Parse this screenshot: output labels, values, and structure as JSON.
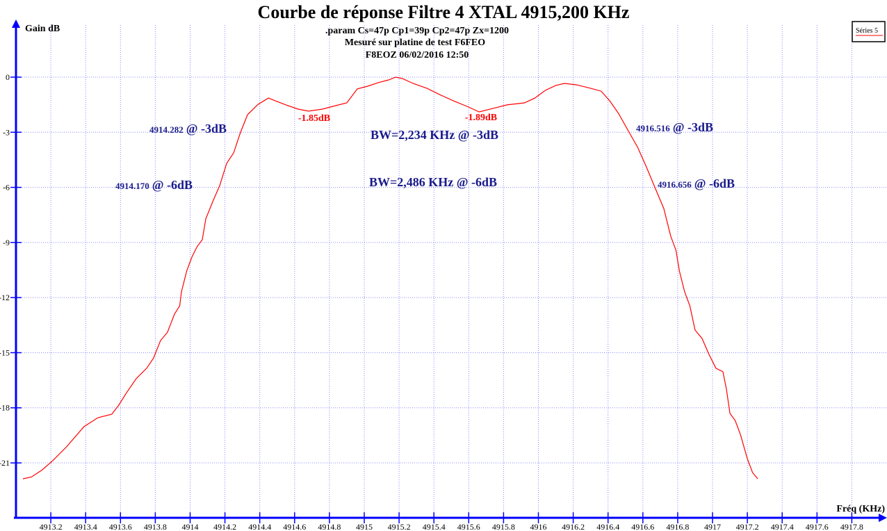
{
  "chart_data": {
    "type": "line",
    "title": "Courbe de réponse Filtre 4 XTAL 4915,200 KHz",
    "subtitles": [
      ".param Cs=47p Cp1=39p Cp2=47p Zx=1200",
      "Mesuré sur platine de test F6FEO",
      "F8EOZ 06/02/2016 12:50"
    ],
    "xlabel": "Fréq (KHz)",
    "ylabel": "Gain dB",
    "xlim": [
      4913.0,
      4918.0
    ],
    "ylim": [
      -24,
      3
    ],
    "grid": true,
    "legend_position": "top-right",
    "x_ticks": [
      "4913.2",
      "4913.4",
      "4913.6",
      "4913.8",
      "4914",
      "4914.2",
      "4914.4",
      "4914.6",
      "4914.8",
      "4915",
      "4915.2",
      "4915.4",
      "4915.6",
      "4915.8",
      "4916",
      "4916.2",
      "4916.4",
      "4916.6",
      "4916.8",
      "4917",
      "4917.2",
      "4917.4",
      "4917.6",
      "4917.8"
    ],
    "y_ticks": [
      "0",
      "-3",
      "-6",
      "-9",
      "-12",
      "-15",
      "-18",
      "-21"
    ],
    "series": [
      {
        "name": "Séries 5",
        "color": "#ff0000",
        "x": [
          4913.04,
          4913.09,
          4913.15,
          4913.21,
          4913.29,
          4913.39,
          4913.47,
          4913.55,
          4913.59,
          4913.63,
          4913.69,
          4913.75,
          4913.79,
          4913.83,
          4913.87,
          4913.91,
          4913.94,
          4913.95,
          4913.98,
          4914.01,
          4914.04,
          4914.07,
          4914.09,
          4914.13,
          4914.17,
          4914.21,
          4914.25,
          4914.29,
          4914.33,
          4914.39,
          4914.45,
          4914.49,
          4914.55,
          4914.62,
          4914.68,
          4914.76,
          4914.82,
          4914.9,
          4914.96,
          4915.02,
          4915.08,
          4915.14,
          4915.18,
          4915.22,
          4915.28,
          4915.36,
          4915.44,
          4915.52,
          4915.59,
          4915.66,
          4915.74,
          4915.82,
          4915.92,
          4915.98,
          4916.04,
          4916.1,
          4916.15,
          4916.22,
          4916.3,
          4916.36,
          4916.41,
          4916.46,
          4916.52,
          4916.57,
          4916.62,
          4916.67,
          4916.72,
          4916.76,
          4916.79,
          4916.81,
          4916.84,
          4916.87,
          4916.9,
          4916.94,
          4916.98,
          4917.02,
          4917.06,
          4917.08,
          4917.1,
          4917.13,
          4917.16,
          4917.2,
          4917.23,
          4917.26
        ],
        "y": [
          -21.87,
          -21.76,
          -21.38,
          -20.89,
          -20.13,
          -19.03,
          -18.54,
          -18.35,
          -17.86,
          -17.25,
          -16.42,
          -15.85,
          -15.29,
          -14.34,
          -13.89,
          -12.9,
          -12.45,
          -11.69,
          -10.56,
          -9.8,
          -9.23,
          -8.85,
          -7.72,
          -6.77,
          -5.9,
          -4.69,
          -4.12,
          -2.99,
          -2.04,
          -1.48,
          -1.14,
          -1.29,
          -1.51,
          -1.74,
          -1.85,
          -1.74,
          -1.59,
          -1.4,
          -0.64,
          -0.49,
          -0.3,
          -0.15,
          0.0,
          -0.08,
          -0.34,
          -0.61,
          -0.98,
          -1.32,
          -1.59,
          -1.89,
          -1.7,
          -1.51,
          -1.4,
          -1.14,
          -0.72,
          -0.45,
          -0.34,
          -0.42,
          -0.61,
          -0.76,
          -1.29,
          -1.97,
          -2.99,
          -3.82,
          -4.88,
          -6.02,
          -7.15,
          -8.66,
          -9.42,
          -10.56,
          -11.69,
          -12.45,
          -13.77,
          -14.23,
          -15.1,
          -15.85,
          -16.04,
          -16.99,
          -18.31,
          -18.69,
          -19.45,
          -20.77,
          -21.53,
          -21.87
        ]
      }
    ],
    "annotations": {
      "left_3db_freq": "4914.282",
      "left_3db_suffix": "@ -3dB",
      "left_6db_freq": "4914.170",
      "left_6db_suffix": "@ -6dB",
      "right_3db_freq": "4916.516",
      "right_3db_suffix": "@ -3dB",
      "right_6db_freq": "4916.656",
      "right_6db_suffix": "@ -6dB",
      "dip_left": "-1.85dB",
      "dip_right": "-1.89dB",
      "bw_3db": "BW=2,234 KHz @ -3dB",
      "bw_6db": "BW=2,486 KHz @ -6dB"
    },
    "colors": {
      "axis": "#0000ff",
      "grid": "#8888ff",
      "curve": "#ff0000",
      "annotation": "#1a1a8c",
      "dip_label": "#ff0000"
    }
  }
}
